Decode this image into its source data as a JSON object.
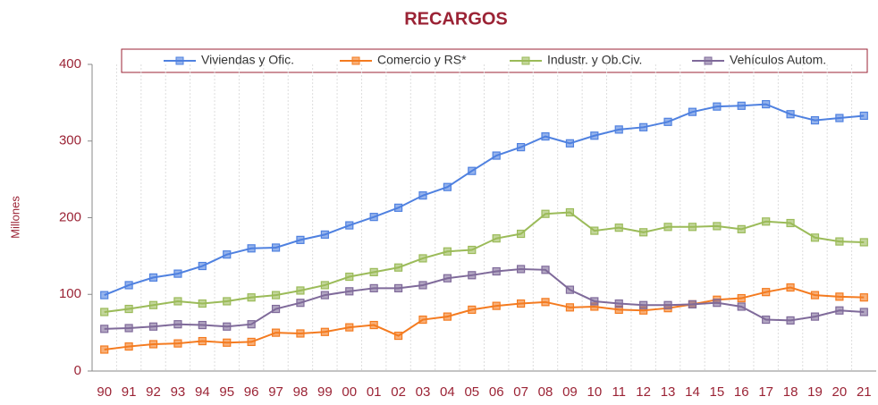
{
  "chart_data": {
    "type": "line",
    "title": "RECARGOS",
    "ylabel": "Millones",
    "categories": [
      "90",
      "91",
      "92",
      "93",
      "94",
      "95",
      "96",
      "97",
      "98",
      "99",
      "00",
      "01",
      "02",
      "03",
      "04",
      "05",
      "06",
      "07",
      "08",
      "09",
      "10",
      "11",
      "12",
      "13",
      "14",
      "15",
      "16",
      "17",
      "18",
      "19",
      "20",
      "21"
    ],
    "series": [
      {
        "name": "Viviendas y Ofic.",
        "color": "#4f81e0",
        "values": [
          99,
          112,
          122,
          127,
          137,
          152,
          160,
          161,
          171,
          178,
          190,
          201,
          213,
          229,
          240,
          261,
          281,
          292,
          306,
          297,
          307,
          315,
          318,
          325,
          338,
          345,
          346,
          348,
          335,
          327,
          330,
          333
        ]
      },
      {
        "name": "Comercio y RS*",
        "color": "#f47b20",
        "values": [
          28,
          32,
          35,
          36,
          39,
          37,
          38,
          50,
          49,
          51,
          57,
          60,
          46,
          67,
          71,
          80,
          85,
          88,
          90,
          83,
          84,
          80,
          79,
          82,
          87,
          93,
          95,
          103,
          109,
          99,
          97,
          96
        ]
      },
      {
        "name": "Industr. y Ob.Civ.",
        "color": "#9bbb59",
        "values": [
          77,
          81,
          86,
          91,
          88,
          91,
          96,
          99,
          105,
          112,
          123,
          129,
          135,
          147,
          156,
          158,
          173,
          179,
          205,
          207,
          183,
          187,
          181,
          188,
          188,
          189,
          185,
          195,
          193,
          174,
          169,
          168
        ]
      },
      {
        "name": "Vehículos Autom.",
        "color": "#7f6a9a",
        "values": [
          55,
          56,
          58,
          61,
          60,
          58,
          61,
          81,
          89,
          99,
          104,
          108,
          108,
          112,
          121,
          125,
          130,
          133,
          132,
          106,
          91,
          88,
          86,
          86,
          87,
          89,
          84,
          67,
          66,
          71,
          79,
          77
        ]
      }
    ],
    "ylim": [
      0,
      400
    ],
    "yticks": [
      0,
      100,
      200,
      300,
      400
    ],
    "grid": true
  }
}
